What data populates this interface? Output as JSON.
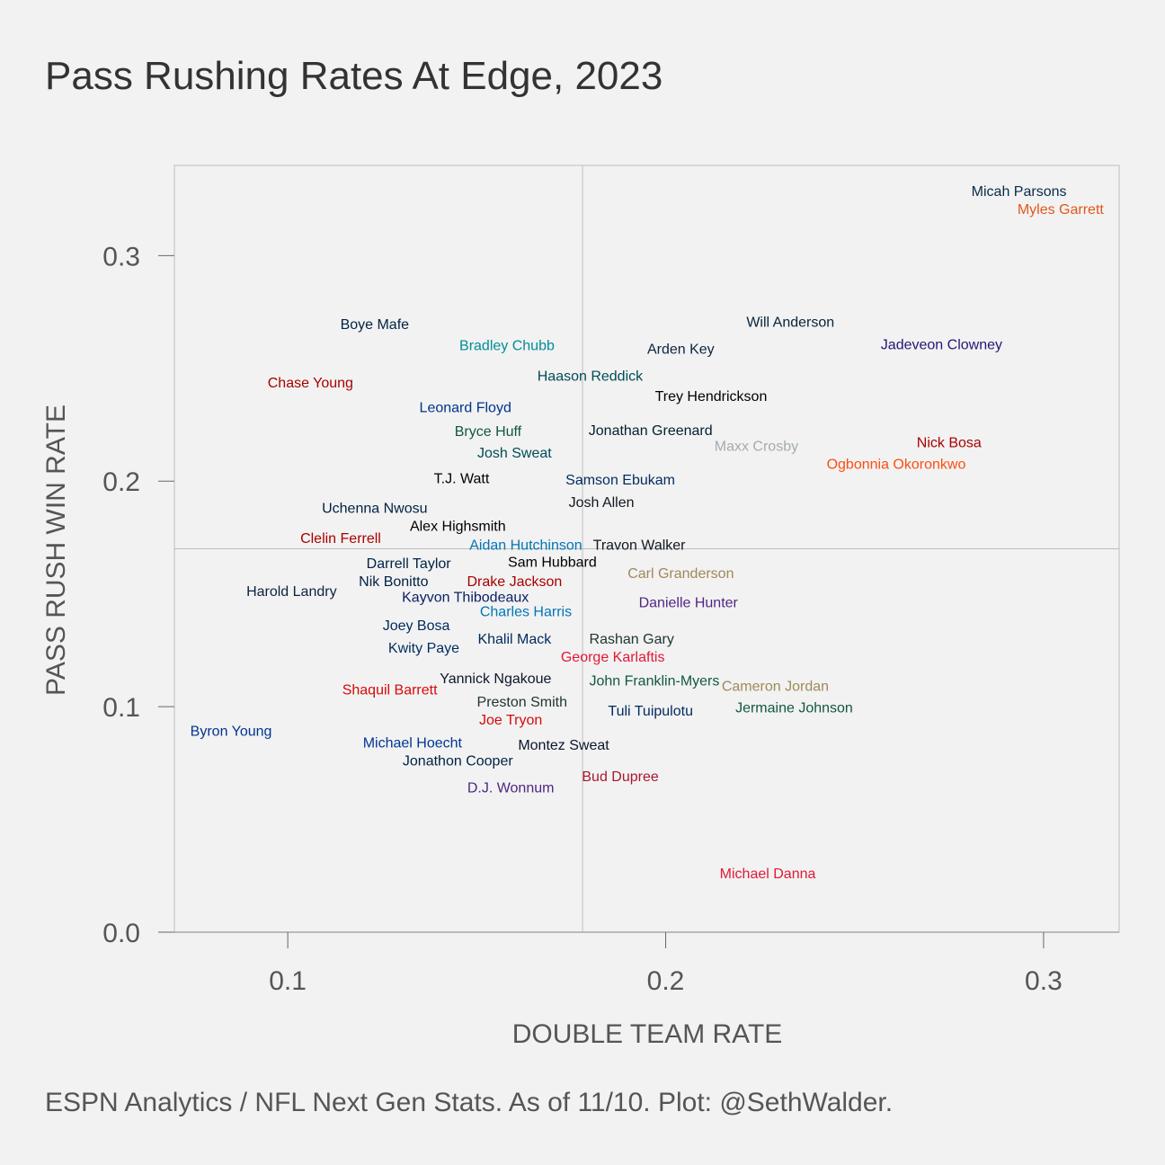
{
  "chart_data": {
    "type": "scatter",
    "title": "Pass Rushing Rates At Edge, 2023",
    "xlabel": "DOUBLE TEAM RATE",
    "ylabel": "PASS RUSH WIN RATE",
    "xlim": [
      0.07,
      0.32
    ],
    "ylim": [
      0.0,
      0.34
    ],
    "xticks": [
      0.1,
      0.2,
      0.3
    ],
    "xtick_labels": [
      "0.1",
      "0.2",
      "0.3"
    ],
    "yticks": [
      0.0,
      0.1,
      0.2,
      0.3
    ],
    "ytick_labels": [
      "0.0",
      "0.1",
      "0.2",
      "0.3"
    ],
    "reference_lines": {
      "x": 0.178,
      "y": 0.17
    },
    "grid": false,
    "points": [
      {
        "name": "Micah Parsons",
        "x": 0.2935,
        "y": 0.3285,
        "color": "#0b2a4a"
      },
      {
        "name": "Myles Garrett",
        "x": 0.3045,
        "y": 0.3205,
        "color": "#e2571b"
      },
      {
        "name": "Will Anderson",
        "x": 0.233,
        "y": 0.2705,
        "color": "#06243a"
      },
      {
        "name": "Jadeveon Clowney",
        "x": 0.273,
        "y": 0.2605,
        "color": "#241773"
      },
      {
        "name": "Boye Mafe",
        "x": 0.123,
        "y": 0.2695,
        "color": "#002244"
      },
      {
        "name": "Bradley Chubb",
        "x": 0.158,
        "y": 0.26,
        "color": "#008e97"
      },
      {
        "name": "Arden Key",
        "x": 0.204,
        "y": 0.2585,
        "color": "#0c2340"
      },
      {
        "name": "Haason Reddick",
        "x": 0.18,
        "y": 0.2465,
        "color": "#004c54"
      },
      {
        "name": "Chase Young",
        "x": 0.106,
        "y": 0.2435,
        "color": "#aa0000"
      },
      {
        "name": "Trey Hendrickson",
        "x": 0.212,
        "y": 0.2375,
        "color": "#000000"
      },
      {
        "name": "Leonard Floyd",
        "x": 0.147,
        "y": 0.2325,
        "color": "#00338d"
      },
      {
        "name": "Bryce Huff",
        "x": 0.153,
        "y": 0.222,
        "color": "#125740"
      },
      {
        "name": "Jonathan Greenard",
        "x": 0.196,
        "y": 0.2225,
        "color": "#03202f"
      },
      {
        "name": "Nick Bosa",
        "x": 0.275,
        "y": 0.217,
        "color": "#aa0000"
      },
      {
        "name": "Maxx Crosby",
        "x": 0.224,
        "y": 0.2155,
        "color": "#a5acaf"
      },
      {
        "name": "Josh Sweat",
        "x": 0.16,
        "y": 0.2125,
        "color": "#004c54"
      },
      {
        "name": "Ogbonnia Okoronkwo",
        "x": 0.261,
        "y": 0.2075,
        "color": "#fb4f14"
      },
      {
        "name": "T.J. Watt",
        "x": 0.146,
        "y": 0.201,
        "color": "#000000"
      },
      {
        "name": "Samson Ebukam",
        "x": 0.188,
        "y": 0.2005,
        "color": "#002c5f"
      },
      {
        "name": "Josh Allen",
        "x": 0.183,
        "y": 0.1905,
        "color": "#101820"
      },
      {
        "name": "Uchenna Nwosu",
        "x": 0.123,
        "y": 0.188,
        "color": "#002244"
      },
      {
        "name": "Alex Highsmith",
        "x": 0.145,
        "y": 0.18,
        "color": "#000000"
      },
      {
        "name": "Clelin Ferrell",
        "x": 0.114,
        "y": 0.1745,
        "color": "#aa0000"
      },
      {
        "name": "Aidan Hutchinson",
        "x": 0.163,
        "y": 0.1715,
        "color": "#0076b6"
      },
      {
        "name": "Travon Walker",
        "x": 0.193,
        "y": 0.1715,
        "color": "#101820"
      },
      {
        "name": "Darrell Taylor",
        "x": 0.132,
        "y": 0.1635,
        "color": "#002244"
      },
      {
        "name": "Sam Hubbard",
        "x": 0.17,
        "y": 0.164,
        "color": "#000000"
      },
      {
        "name": "Carl Granderson",
        "x": 0.204,
        "y": 0.159,
        "color": "#9f8958"
      },
      {
        "name": "Nik Bonitto",
        "x": 0.128,
        "y": 0.1555,
        "color": "#002244"
      },
      {
        "name": "Drake Jackson",
        "x": 0.16,
        "y": 0.1555,
        "color": "#aa0000"
      },
      {
        "name": "Harold Landry",
        "x": 0.101,
        "y": 0.151,
        "color": "#0c2340"
      },
      {
        "name": "Kayvon Thibodeaux",
        "x": 0.147,
        "y": 0.1485,
        "color": "#0b2265"
      },
      {
        "name": "Danielle Hunter",
        "x": 0.206,
        "y": 0.146,
        "color": "#4f2683"
      },
      {
        "name": "Charles Harris",
        "x": 0.163,
        "y": 0.142,
        "color": "#0076b6"
      },
      {
        "name": "Joey Bosa",
        "x": 0.134,
        "y": 0.136,
        "color": "#002a5e"
      },
      {
        "name": "Khalil Mack",
        "x": 0.16,
        "y": 0.13,
        "color": "#002a5e"
      },
      {
        "name": "Rashan Gary",
        "x": 0.191,
        "y": 0.13,
        "color": "#203731"
      },
      {
        "name": "Kwity Paye",
        "x": 0.136,
        "y": 0.126,
        "color": "#002c5f"
      },
      {
        "name": "George Karlaftis",
        "x": 0.186,
        "y": 0.122,
        "color": "#e31837"
      },
      {
        "name": "Yannick Ngakoue",
        "x": 0.155,
        "y": 0.1125,
        "color": "#0b162a"
      },
      {
        "name": "John Franklin-Myers",
        "x": 0.197,
        "y": 0.1115,
        "color": "#125740"
      },
      {
        "name": "Cameron Jordan",
        "x": 0.229,
        "y": 0.109,
        "color": "#9f8958"
      },
      {
        "name": "Shaquil Barrett",
        "x": 0.127,
        "y": 0.1075,
        "color": "#d50a0a"
      },
      {
        "name": "Preston Smith",
        "x": 0.162,
        "y": 0.102,
        "color": "#203731"
      },
      {
        "name": "Jermaine Johnson",
        "x": 0.234,
        "y": 0.0995,
        "color": "#125740"
      },
      {
        "name": "Tuli Tuipulotu",
        "x": 0.196,
        "y": 0.098,
        "color": "#002a5e"
      },
      {
        "name": "Joe Tryon",
        "x": 0.159,
        "y": 0.094,
        "color": "#d50a0a"
      },
      {
        "name": "Byron Young",
        "x": 0.085,
        "y": 0.089,
        "color": "#003594"
      },
      {
        "name": "Michael Hoecht",
        "x": 0.133,
        "y": 0.084,
        "color": "#003594"
      },
      {
        "name": "Montez Sweat",
        "x": 0.173,
        "y": 0.083,
        "color": "#0b162a"
      },
      {
        "name": "Jonathon Cooper",
        "x": 0.145,
        "y": 0.076,
        "color": "#002244"
      },
      {
        "name": "D.J. Wonnum",
        "x": 0.159,
        "y": 0.064,
        "color": "#4f2683"
      },
      {
        "name": "Bud Dupree",
        "x": 0.188,
        "y": 0.069,
        "color": "#a71930"
      },
      {
        "name": "Michael Danna",
        "x": 0.227,
        "y": 0.026,
        "color": "#e31837"
      }
    ]
  },
  "caption": "ESPN Analytics / NFL Next Gen Stats. As of 11/10. Plot: @SethWalder."
}
